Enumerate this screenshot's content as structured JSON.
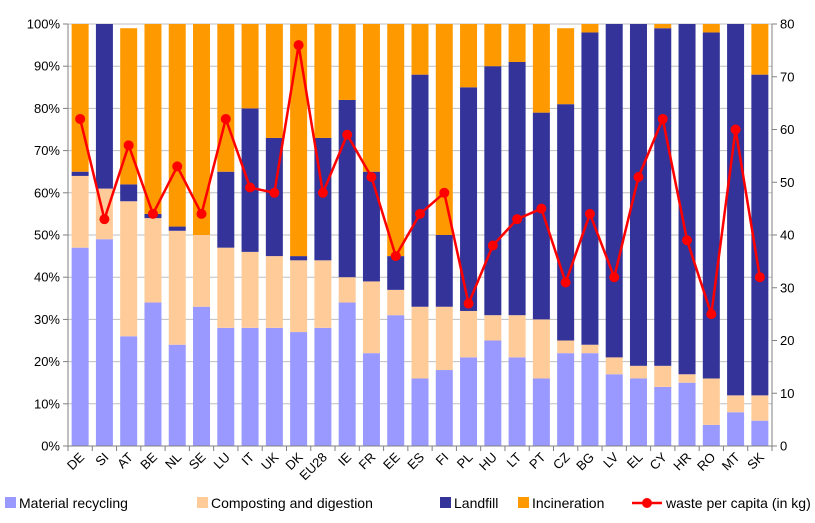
{
  "chart_data": {
    "type": "bar",
    "stacked": true,
    "categories": [
      "DE",
      "SI",
      "AT",
      "BE",
      "NL",
      "SE",
      "LU",
      "IT",
      "UK",
      "DK",
      "EU28",
      "IE",
      "FR",
      "EE",
      "ES",
      "FI",
      "PL",
      "HU",
      "LT",
      "PT",
      "CZ",
      "BG",
      "LV",
      "EL",
      "CY",
      "HR",
      "RO",
      "MT",
      "SK"
    ],
    "series": [
      {
        "name": "Material recycling",
        "color": "#9999ff",
        "values": [
          47,
          49,
          26,
          34,
          24,
          33,
          28,
          28,
          28,
          27,
          28,
          34,
          22,
          31,
          16,
          18,
          21,
          25,
          21,
          16,
          22,
          22,
          17,
          16,
          14,
          15,
          5,
          8,
          6
        ]
      },
      {
        "name": "Composting and digestion",
        "color": "#ffcc99",
        "values": [
          17,
          12,
          32,
          20,
          27,
          17,
          19,
          18,
          17,
          17,
          16,
          6,
          17,
          6,
          17,
          15,
          11,
          6,
          10,
          14,
          3,
          2,
          4,
          3,
          5,
          2,
          11,
          4,
          6
        ]
      },
      {
        "name": "Landfill",
        "color": "#333399",
        "values": [
          1,
          39,
          4,
          1,
          1,
          0,
          18,
          34,
          28,
          1,
          29,
          42,
          26,
          8,
          55,
          17,
          53,
          59,
          60,
          49,
          56,
          74,
          79,
          81,
          80,
          83,
          82,
          88,
          76
        ]
      },
      {
        "name": "Incineration",
        "color": "#ff9900",
        "values": [
          35,
          0,
          37,
          45,
          48,
          50,
          35,
          20,
          27,
          55,
          27,
          18,
          35,
          55,
          12,
          50,
          15,
          10,
          9,
          21,
          18,
          2,
          0,
          0,
          1,
          0,
          2,
          0,
          12
        ]
      }
    ],
    "line_series": {
      "name": "waste per capita (in kg)",
      "color": "#ff0000",
      "axis": "right",
      "values": [
        62,
        43,
        57,
        44,
        53,
        44,
        62,
        49,
        48,
        76,
        48,
        59,
        51,
        36,
        44,
        48,
        27,
        38,
        43,
        45,
        31,
        44,
        32,
        51,
        62,
        39,
        25,
        60,
        32
      ]
    },
    "ylim": [
      0,
      100
    ],
    "y_ticks": [
      "0%",
      "10%",
      "20%",
      "30%",
      "40%",
      "50%",
      "60%",
      "70%",
      "80%",
      "90%",
      "100%"
    ],
    "y2lim": [
      0,
      80
    ],
    "y2_ticks": [
      "0",
      "10",
      "20",
      "30",
      "40",
      "50",
      "60",
      "70",
      "80"
    ],
    "title": "",
    "xlabel": "",
    "ylabel": "",
    "legend": {
      "position": "bottom"
    }
  }
}
